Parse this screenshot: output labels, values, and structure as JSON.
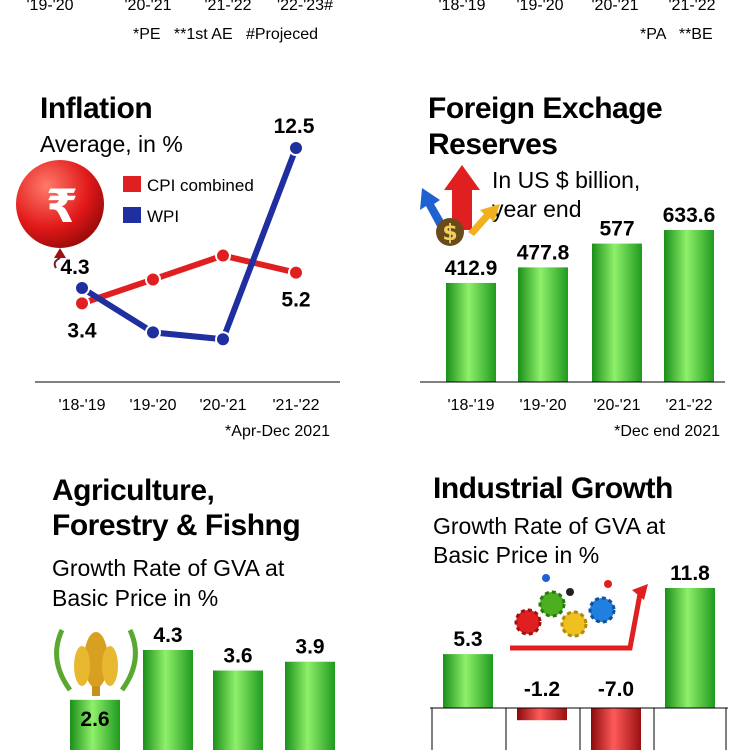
{
  "top": {
    "left_ticks": [
      "'19-'20",
      "'20-'21",
      "'21-'22",
      "'22-'23#"
    ],
    "left_note": "*PE   **1st AE   #Projeced",
    "right_ticks": [
      "'18-'19",
      "'19-'20",
      "'20-'21",
      "'21-'22"
    ],
    "right_note": "*PA   **BE"
  },
  "inflation": {
    "title": "Inflation",
    "subtitle": "Average, in %",
    "x_note": "*Apr-Dec 2021",
    "icon": "rupee-balloon-icon"
  },
  "forex": {
    "title_line1": "Foreign Exchage",
    "title_line2": "Reserves",
    "subtitle_line1": "In US $ billion,",
    "subtitle_line2": "year end",
    "x_note": "*Dec end 2021",
    "icon": "dollar-arrows-icon"
  },
  "agri": {
    "title_line1": "Agriculture,",
    "title_line2": "Forestry & Fishng",
    "subtitle_line1": "Growth Rate of GVA at",
    "subtitle_line2": "Basic Price in %",
    "icon": "wheat-wreath-icon"
  },
  "industry": {
    "title": "Industrial Growth",
    "subtitle_line1": "Growth Rate of GVA at",
    "subtitle_line2": "Basic Price in %",
    "icon": "gears-people-icon"
  },
  "colors": {
    "green": "#2db82d",
    "red": "#e02020",
    "blue": "#1f2fa0",
    "dark_red": "#a01010"
  },
  "chart_data": [
    {
      "type": "line",
      "title": "Inflation",
      "categories": [
        "'18-'19",
        "'19-'20",
        "'20-'21",
        "'21-'22"
      ],
      "series": [
        {
          "name": "CPI combined",
          "values": [
            3.4,
            4.8,
            6.2,
            5.2
          ],
          "labels": [
            "3.4",
            "",
            "",
            "5.2"
          ],
          "color": "#e02020"
        },
        {
          "name": "WPI",
          "values": [
            4.3,
            1.7,
            1.3,
            12.5
          ],
          "labels": [
            "4.3",
            "",
            "",
            "12.5"
          ],
          "color": "#1f2fa0"
        }
      ]
    },
    {
      "type": "bar",
      "title": "Foreign Exchage Reserves",
      "categories": [
        "'18-'19",
        "'19-'20",
        "'20-'21",
        "'21-'22"
      ],
      "values": [
        412.9,
        477.8,
        577,
        633.6
      ],
      "labels": [
        "412.9",
        "477.8",
        "577",
        "633.6"
      ]
    },
    {
      "type": "bar",
      "title": "Agriculture, Forestry & Fishng",
      "values": [
        2.6,
        4.3,
        3.6,
        3.9
      ],
      "labels": [
        "2.6",
        "4.3",
        "3.6",
        "3.9"
      ]
    },
    {
      "type": "bar",
      "title": "Industrial Growth",
      "values": [
        5.3,
        -1.2,
        -7.0,
        11.8
      ],
      "labels": [
        "5.3",
        "-1.2",
        "-7.0",
        "11.8"
      ]
    }
  ]
}
